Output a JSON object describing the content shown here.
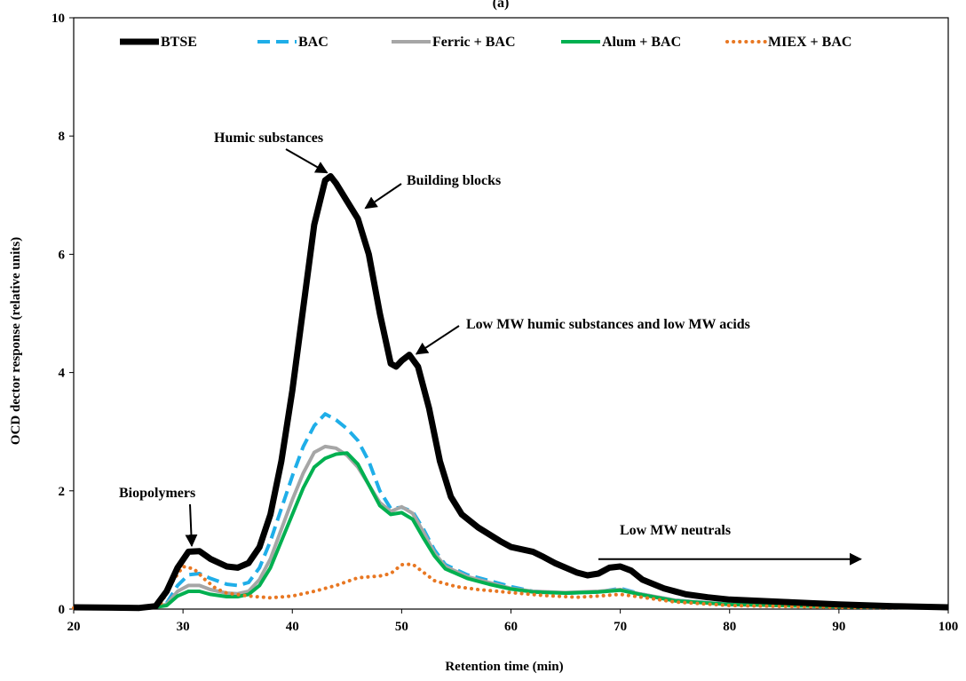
{
  "chart_data": {
    "type": "line",
    "panel_label": "(a)",
    "xlabel": "Retention time (min)",
    "ylabel": "OCD dector response (relative units)",
    "xlim": [
      20,
      100
    ],
    "ylim": [
      0,
      10
    ],
    "xticks": [
      20,
      30,
      40,
      50,
      60,
      70,
      80,
      90,
      100
    ],
    "yticks": [
      0,
      2,
      4,
      6,
      8,
      10
    ],
    "grid": false,
    "legend": {
      "placement": "top",
      "entries": [
        "BTSE",
        "BAC",
        "Ferric + BAC",
        "Alum + BAC",
        "MIEX + BAC"
      ]
    },
    "series": [
      {
        "name": "BTSE",
        "color": "#000000",
        "style": "solid",
        "points": [
          [
            20,
            0.03
          ],
          [
            26,
            0.02
          ],
          [
            27.5,
            0.05
          ],
          [
            28.5,
            0.3
          ],
          [
            29.5,
            0.7
          ],
          [
            30.5,
            0.97
          ],
          [
            31.5,
            0.98
          ],
          [
            32.5,
            0.85
          ],
          [
            34,
            0.72
          ],
          [
            35,
            0.7
          ],
          [
            36,
            0.78
          ],
          [
            37,
            1.05
          ],
          [
            38,
            1.6
          ],
          [
            39,
            2.5
          ],
          [
            40,
            3.7
          ],
          [
            41,
            5.1
          ],
          [
            42,
            6.5
          ],
          [
            43,
            7.25
          ],
          [
            43.5,
            7.32
          ],
          [
            44,
            7.2
          ],
          [
            45,
            6.9
          ],
          [
            46,
            6.6
          ],
          [
            47,
            6.0
          ],
          [
            48,
            5.0
          ],
          [
            49,
            4.15
          ],
          [
            49.5,
            4.1
          ],
          [
            50,
            4.2
          ],
          [
            50.7,
            4.3
          ],
          [
            51.5,
            4.1
          ],
          [
            52.5,
            3.4
          ],
          [
            53.5,
            2.5
          ],
          [
            54.5,
            1.9
          ],
          [
            55.5,
            1.6
          ],
          [
            57,
            1.38
          ],
          [
            59,
            1.15
          ],
          [
            60,
            1.05
          ],
          [
            62,
            0.97
          ],
          [
            63,
            0.88
          ],
          [
            64,
            0.78
          ],
          [
            66,
            0.62
          ],
          [
            67,
            0.57
          ],
          [
            68,
            0.6
          ],
          [
            69,
            0.7
          ],
          [
            70,
            0.72
          ],
          [
            71,
            0.65
          ],
          [
            72,
            0.5
          ],
          [
            74,
            0.35
          ],
          [
            76,
            0.25
          ],
          [
            78,
            0.2
          ],
          [
            80,
            0.16
          ],
          [
            85,
            0.12
          ],
          [
            90,
            0.08
          ],
          [
            95,
            0.05
          ],
          [
            100,
            0.03
          ]
        ]
      },
      {
        "name": "BAC",
        "color": "#1FAEE8",
        "style": "dashed",
        "points": [
          [
            20,
            0.03
          ],
          [
            27,
            0.02
          ],
          [
            28.5,
            0.1
          ],
          [
            29.5,
            0.4
          ],
          [
            30.5,
            0.58
          ],
          [
            31.5,
            0.6
          ],
          [
            32.5,
            0.52
          ],
          [
            34,
            0.42
          ],
          [
            35,
            0.4
          ],
          [
            36,
            0.45
          ],
          [
            37,
            0.7
          ],
          [
            38,
            1.15
          ],
          [
            39,
            1.7
          ],
          [
            40,
            2.25
          ],
          [
            41,
            2.75
          ],
          [
            42,
            3.1
          ],
          [
            43,
            3.3
          ],
          [
            44,
            3.2
          ],
          [
            45,
            3.05
          ],
          [
            46,
            2.85
          ],
          [
            47,
            2.5
          ],
          [
            48,
            2.0
          ],
          [
            49,
            1.7
          ],
          [
            50,
            1.72
          ],
          [
            51,
            1.65
          ],
          [
            52,
            1.35
          ],
          [
            53,
            1.0
          ],
          [
            54,
            0.75
          ],
          [
            56,
            0.58
          ],
          [
            58,
            0.48
          ],
          [
            60,
            0.38
          ],
          [
            62,
            0.3
          ],
          [
            65,
            0.27
          ],
          [
            68,
            0.29
          ],
          [
            70,
            0.35
          ],
          [
            72,
            0.25
          ],
          [
            75,
            0.15
          ],
          [
            80,
            0.08
          ],
          [
            90,
            0.04
          ],
          [
            100,
            0.02
          ]
        ]
      },
      {
        "name": "Ferric + BAC",
        "color": "#A6A6A6",
        "style": "solid",
        "points": [
          [
            20,
            0.02
          ],
          [
            27,
            0.02
          ],
          [
            28.5,
            0.08
          ],
          [
            29.5,
            0.3
          ],
          [
            30.5,
            0.4
          ],
          [
            31.5,
            0.4
          ],
          [
            32.5,
            0.33
          ],
          [
            34,
            0.27
          ],
          [
            35,
            0.26
          ],
          [
            36,
            0.3
          ],
          [
            37,
            0.5
          ],
          [
            38,
            0.85
          ],
          [
            39,
            1.35
          ],
          [
            40,
            1.85
          ],
          [
            41,
            2.3
          ],
          [
            42,
            2.65
          ],
          [
            43,
            2.75
          ],
          [
            44,
            2.72
          ],
          [
            45,
            2.6
          ],
          [
            46,
            2.4
          ],
          [
            47,
            2.1
          ],
          [
            48,
            1.8
          ],
          [
            49,
            1.65
          ],
          [
            50,
            1.73
          ],
          [
            51,
            1.62
          ],
          [
            52,
            1.3
          ],
          [
            53,
            0.95
          ],
          [
            54,
            0.72
          ],
          [
            56,
            0.55
          ],
          [
            58,
            0.45
          ],
          [
            60,
            0.35
          ],
          [
            62,
            0.3
          ],
          [
            65,
            0.28
          ],
          [
            68,
            0.3
          ],
          [
            70,
            0.33
          ],
          [
            72,
            0.25
          ],
          [
            75,
            0.15
          ],
          [
            80,
            0.08
          ],
          [
            90,
            0.04
          ],
          [
            100,
            0.02
          ]
        ]
      },
      {
        "name": "Alum + BAC",
        "color": "#00B050",
        "style": "solid",
        "points": [
          [
            20,
            0.02
          ],
          [
            27,
            0.02
          ],
          [
            28.5,
            0.06
          ],
          [
            29.5,
            0.22
          ],
          [
            30.5,
            0.3
          ],
          [
            31.5,
            0.3
          ],
          [
            32.5,
            0.25
          ],
          [
            34,
            0.21
          ],
          [
            35,
            0.21
          ],
          [
            36,
            0.25
          ],
          [
            37,
            0.4
          ],
          [
            38,
            0.7
          ],
          [
            39,
            1.15
          ],
          [
            40,
            1.6
          ],
          [
            41,
            2.05
          ],
          [
            42,
            2.4
          ],
          [
            43,
            2.55
          ],
          [
            44,
            2.62
          ],
          [
            45,
            2.64
          ],
          [
            46,
            2.45
          ],
          [
            47,
            2.1
          ],
          [
            48,
            1.75
          ],
          [
            49,
            1.6
          ],
          [
            50,
            1.63
          ],
          [
            51,
            1.52
          ],
          [
            52,
            1.2
          ],
          [
            53,
            0.9
          ],
          [
            54,
            0.68
          ],
          [
            56,
            0.52
          ],
          [
            58,
            0.42
          ],
          [
            60,
            0.34
          ],
          [
            62,
            0.29
          ],
          [
            65,
            0.27
          ],
          [
            68,
            0.29
          ],
          [
            70,
            0.32
          ],
          [
            72,
            0.24
          ],
          [
            75,
            0.14
          ],
          [
            80,
            0.08
          ],
          [
            90,
            0.04
          ],
          [
            100,
            0.02
          ]
        ]
      },
      {
        "name": "MIEX + BAC",
        "color": "#E87722",
        "style": "dotted",
        "points": [
          [
            20,
            0.02
          ],
          [
            27,
            0.02
          ],
          [
            28,
            0.1
          ],
          [
            29,
            0.45
          ],
          [
            30,
            0.72
          ],
          [
            31,
            0.68
          ],
          [
            32,
            0.5
          ],
          [
            33,
            0.35
          ],
          [
            34,
            0.27
          ],
          [
            36,
            0.22
          ],
          [
            38,
            0.19
          ],
          [
            40,
            0.22
          ],
          [
            42,
            0.3
          ],
          [
            44,
            0.4
          ],
          [
            46,
            0.53
          ],
          [
            48,
            0.56
          ],
          [
            49,
            0.6
          ],
          [
            50,
            0.75
          ],
          [
            51,
            0.76
          ],
          [
            52,
            0.62
          ],
          [
            53,
            0.48
          ],
          [
            55,
            0.38
          ],
          [
            57,
            0.33
          ],
          [
            60,
            0.28
          ],
          [
            63,
            0.23
          ],
          [
            66,
            0.2
          ],
          [
            68,
            0.22
          ],
          [
            70,
            0.25
          ],
          [
            72,
            0.2
          ],
          [
            75,
            0.12
          ],
          [
            80,
            0.06
          ],
          [
            90,
            0.03
          ],
          [
            100,
            0.02
          ]
        ]
      }
    ],
    "annotations": [
      {
        "text": "Humic substances",
        "arrow_to": [
          43.5,
          7.32
        ]
      },
      {
        "text": "Building blocks",
        "arrow_to": [
          46.2,
          6.75
        ]
      },
      {
        "text": "Low MW humic substances and low MW acids",
        "arrow_to": [
          50.7,
          4.3
        ]
      },
      {
        "text": "Biopolymers",
        "arrow_to": [
          30.8,
          0.98
        ]
      },
      {
        "text": "Low MW neutrals",
        "arrow_from": [
          68,
          0.95
        ],
        "arrow_to": [
          92,
          0.95
        ]
      }
    ]
  }
}
